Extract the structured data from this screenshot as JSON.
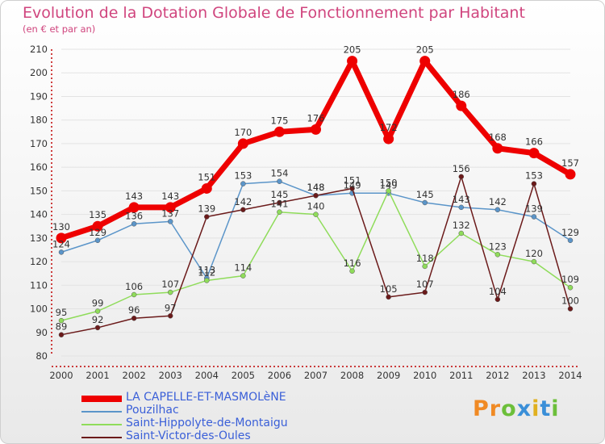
{
  "title": "Evolution de la Dotation Globale de Fonctionnement par Habitant",
  "subtitle": "(en € et par an)",
  "logo_text": "Proxiti",
  "colors": {
    "title": "#d0457e",
    "axis": "#c00000",
    "legend_text": "#3a5fd8",
    "grid": "#e3e3e3"
  },
  "chart_data": {
    "type": "line",
    "title": "Evolution de la Dotation Globale de Fonctionnement par Habitant",
    "ylabel": "(en € et par an)",
    "xlabel": "",
    "ylim": [
      80,
      210
    ],
    "yticks": [
      80,
      90,
      100,
      110,
      120,
      130,
      140,
      150,
      160,
      170,
      180,
      190,
      200,
      210
    ],
    "categories": [
      "2000",
      "2001",
      "2002",
      "2003",
      "2004",
      "2005",
      "2006",
      "2007",
      "2008",
      "2009",
      "2010",
      "2011",
      "2012",
      "2013",
      "2014"
    ],
    "legend_position": "bottom-left",
    "series": [
      {
        "name": "LA CAPELLE-ET-MASMOLèNE",
        "color": "#ee0000",
        "width": 7,
        "values": [
          130,
          135,
          143,
          143,
          151,
          170,
          175,
          176,
          205,
          172,
          205,
          186,
          168,
          166,
          157
        ]
      },
      {
        "name": "Pouzilhac",
        "color": "#5b95c9",
        "width": 1.5,
        "values": [
          124,
          129,
          136,
          137,
          113,
          153,
          154,
          148,
          149,
          149,
          145,
          143,
          142,
          139,
          129
        ]
      },
      {
        "name": "Saint-Hippolyte-de-Montaigu",
        "color": "#8fdc5a",
        "width": 1.5,
        "values": [
          95,
          99,
          106,
          107,
          112,
          114,
          141,
          140,
          116,
          150,
          118,
          132,
          123,
          120,
          109
        ]
      },
      {
        "name": "Saint-Victor-des-Oules",
        "color": "#6b1a1a",
        "width": 1.5,
        "values": [
          89,
          92,
          96,
          97,
          139,
          142,
          145,
          148,
          151,
          105,
          107,
          156,
          104,
          153,
          100
        ]
      }
    ]
  }
}
